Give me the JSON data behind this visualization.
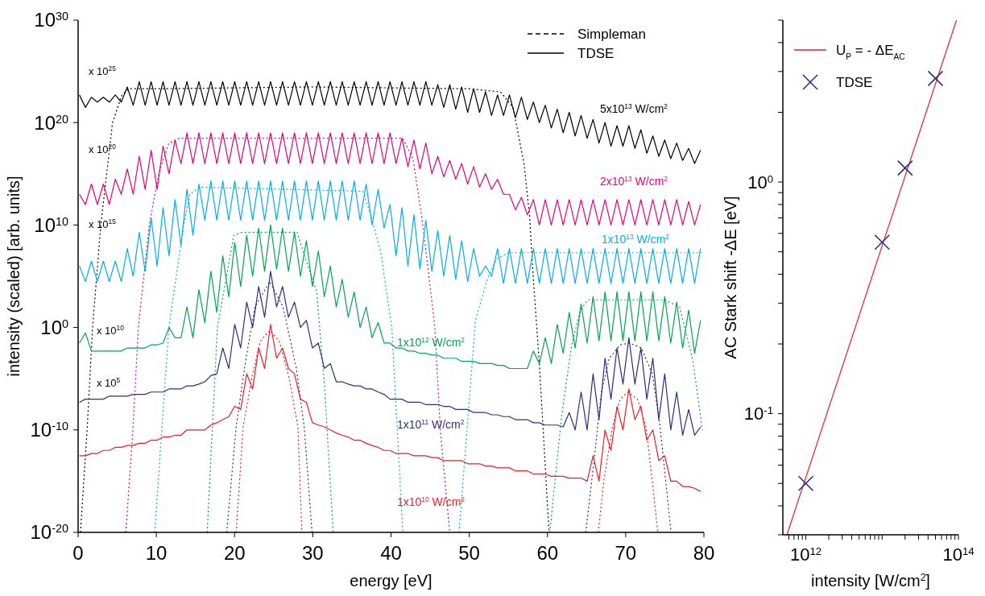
{
  "chart_data": [
    {
      "type": "line",
      "xlabel": "energy [eV]",
      "ylabel": "intensity (scaled) [arb. units]",
      "xlim": [
        0,
        80
      ],
      "ylim": [
        1e-20,
        1e+30
      ],
      "xticks": [
        0,
        10,
        20,
        30,
        40,
        50,
        60,
        70,
        80
      ],
      "yticks": [
        {
          "value": 1e-20,
          "label": "10$^{-20}$"
        },
        {
          "value": 1e-10,
          "label": "10$^{-10}$"
        },
        {
          "value": 1,
          "label": "10$^{0}$"
        },
        {
          "value": 10000000000.0,
          "label": "10$^{10}$"
        },
        {
          "value": 1e+20,
          "label": "10$^{20}$"
        },
        {
          "value": 1e+30,
          "label": "10$^{30}$"
        }
      ],
      "log": "y",
      "annotations": [
        "Simpleman",
        "TDSE",
        "x 10$^{25}$",
        "x 10$^{20}$",
        "x 10$^{15}$",
        "x 10$^{10}$",
        "x 10$^{5}$"
      ],
      "x": [
        0.17,
        0.93,
        1.7,
        2.46,
        3.22,
        3.99,
        4.75,
        5.52,
        6.28,
        7.04,
        7.81,
        8.57,
        9.33,
        10.1,
        10.86,
        11.62,
        12.39,
        13.15,
        13.91,
        14.68,
        15.44,
        16.2,
        16.97,
        17.73,
        18.49,
        19.26,
        20.02,
        20.78,
        21.55,
        22.31,
        23.08,
        23.84,
        24.6,
        25.37,
        26.13,
        26.89,
        27.66,
        28.42,
        29.18,
        29.95,
        30.71,
        31.47,
        32.24,
        33.0,
        33.76,
        34.53,
        35.29,
        36.05,
        36.82,
        37.58,
        38.35,
        39.11,
        39.87,
        40.64,
        41.4,
        42.16,
        42.93,
        43.69,
        44.45,
        45.22,
        45.98,
        46.74,
        47.51,
        48.27,
        49.03,
        49.8,
        50.56,
        51.32,
        52.09,
        52.85,
        53.62,
        54.38,
        55.14,
        55.91,
        56.67,
        57.43,
        58.2,
        58.96,
        59.72,
        60.49,
        61.25,
        62.01,
        62.78,
        63.54,
        64.3,
        65.07,
        65.83,
        66.59,
        67.36,
        68.12,
        68.89,
        69.65,
        70.41,
        71.18,
        71.94,
        72.7,
        73.47,
        74.23,
        74.99,
        75.76,
        76.52,
        77.28,
        78.05,
        78.81,
        79.57
      ],
      "series": [
        {
          "name": "5x10$^{13}$ W/cm$^{2}$",
          "color": "#000000",
          "line_style": "solid",
          "values": [
            5e+22,
            3e+21,
            3e+22,
            1e+22,
            3e+22,
            1e+22,
            5e+22,
            1e+22,
            3e+23,
            5e+21,
            1e+24,
            5e+21,
            1e+24,
            5e+21,
            1e+24,
            5e+21,
            1e+24,
            5e+21,
            1e+24,
            5e+21,
            1e+24,
            5e+21,
            1e+24,
            5e+21,
            1e+24,
            5e+21,
            1e+24,
            5e+21,
            1e+24,
            5e+21,
            1e+24,
            5e+21,
            1e+24,
            5e+21,
            1e+24,
            5e+21,
            1e+24,
            5e+21,
            1e+24,
            5e+21,
            1e+24,
            5e+21,
            1e+24,
            5e+21,
            1e+24,
            5e+21,
            1e+24,
            5e+21,
            1e+24,
            5e+21,
            1e+24,
            5e+21,
            1e+24,
            5e+21,
            1e+24,
            5e+21,
            1e+24,
            5e+21,
            1e+24,
            5e+21,
            5e+23,
            3e+21,
            5e+23,
            2e+21,
            3e+23,
            1e+21,
            2e+23,
            1e+21,
            1e+23,
            5e+20,
            5e+22,
            5e+20,
            5e+22,
            3e+20,
            3e+22,
            2e+20,
            1e+22,
            1e+20,
            5e+21,
            3e+19,
            2e+21,
            1e+19,
            1e+21,
            5e+18,
            5e+20,
            3e+18,
            2e+20,
            1e+18,
            1e+20,
            5e+17,
            5e+19,
            5e+17,
            5e+19,
            3e+17,
            2e+19,
            1e+17,
            5e+18,
            5e+16,
            2e+18,
            3e+16,
            1e+18,
            2e+16,
            3e+17,
            1e+16,
            2e+17
          ]
        },
        {
          "color": "#000000",
          "line_style": "dotted",
          "x": [
            0.3,
            1.15,
            1.85,
            2.9,
            4.4,
            5.6,
            6.5,
            10,
            30,
            50,
            54,
            55.6,
            57,
            57.7,
            58.2,
            59,
            60.2
          ],
          "values": [
            1e-20,
            1e-10,
            1,
            10000000000.0,
            1e+20,
            5e+22,
            2e+23,
            2e+23,
            3e+23,
            2e+23,
            1e+23,
            3e+21,
            1e+16,
            100000000000.0,
            50000.0,
            0.0001,
            1e-20
          ]
        },
        {
          "name": "2x10$^{13}$ W/cm$^{2}$",
          "color": "#e6007e",
          "line_style": "solid",
          "values": [
            10000000000000.0,
            1000000000000.0,
            100000000000000.0,
            1000000000000.0,
            100000000000000.0,
            1000000000000.0,
            300000000000000.0,
            10000000000000.0,
            3000000000000000.0,
            10000000000000.0,
            5e+16,
            30000000000000.0,
            2e+17,
            30000000000000.0,
            5e+17,
            1000000000000000.0,
            2e+18,
            1e+16,
            1e+19,
            1e+16,
            1e+19,
            1e+16,
            1e+19,
            1e+16,
            1e+19,
            1e+16,
            1e+19,
            1e+16,
            1e+19,
            1e+16,
            1e+19,
            1e+16,
            1e+19,
            1e+16,
            1e+19,
            1e+16,
            1e+19,
            1e+16,
            1e+19,
            1e+16,
            1e+19,
            1e+16,
            1e+19,
            1e+16,
            1e+19,
            1e+16,
            1e+19,
            1e+16,
            1e+19,
            1e+16,
            1e+19,
            1e+16,
            1e+19,
            1e+16,
            3e+18,
            5000000000000000.0,
            2e+18,
            3000000000000000.0,
            1e+18,
            1000000000000000.0,
            5e+16,
            500000000000000.0,
            2e+16,
            300000000000000.0,
            1e+16,
            100000000000000.0,
            5000000000000000.0,
            50000000000000.0,
            1000000000000000.0,
            30000000000000.0,
            300000000000000.0,
            10000000000000.0,
            10000000000000.0,
            300000000000.0,
            5000000000000.0,
            100000000000.0,
            3000000000000.0,
            10000000000.0,
            3000000000000.0,
            10000000000.0,
            3000000000000.0,
            10000000000.0,
            3000000000000.0,
            10000000000.0,
            3000000000000.0,
            10000000000.0,
            3000000000000.0,
            10000000000.0,
            3000000000000.0,
            10000000000.0,
            3000000000000.0,
            10000000000.0,
            3000000000000.0,
            10000000000.0,
            3000000000000.0,
            10000000000.0,
            3000000000000.0,
            10000000000.0,
            3000000000000.0,
            10000000000.0,
            3000000000000.0,
            10000000000.0,
            2000000000000.0,
            10000000000.0,
            1000000000000.0
          ]
        },
        {
          "color": "#e6007e",
          "line_style": "dotted",
          "x": [
            6.1,
            7.0,
            7.7,
            9.1,
            10.3,
            11.6,
            13,
            30,
            41.5,
            42.8,
            43.9,
            44.7,
            45.6,
            46.3,
            47.5
          ],
          "values": [
            1e-20,
            1e-10,
            1,
            10000000000.0,
            1000000000000000.0,
            1e+18,
            3e+18,
            3e+18,
            3e+18,
            3e+16,
            100000000000.0,
            1000000.0,
            1,
            1e-10,
            1e-20
          ]
        },
        {
          "name": "1x10$^{13}$ W/cm$^{2}$",
          "color": "#00aeef",
          "line_style": "solid",
          "values": [
            1000000.0,
            30000.0,
            3000000.0,
            30000.0,
            3000000.0,
            30000.0,
            3000000.0,
            30000.0,
            50000000.0,
            100000.0,
            2000000000.0,
            300000.0,
            50000000000.0,
            1000000.0,
            500000000000.0,
            10000000.0,
            3000000000000.0,
            100000000.0,
            30000000000000.0,
            1000000000.0,
            100000000000000.0,
            30000000000.0,
            200000000000000.0,
            30000000000.0,
            200000000000000.0,
            30000000000.0,
            200000000000000.0,
            30000000000.0,
            200000000000000.0,
            30000000000.0,
            200000000000000.0,
            30000000000.0,
            200000000000000.0,
            30000000000.0,
            200000000000000.0,
            30000000000.0,
            200000000000000.0,
            30000000000.0,
            200000000000000.0,
            30000000000.0,
            200000000000000.0,
            30000000000.0,
            200000000000000.0,
            30000000000.0,
            200000000000000.0,
            30000000000.0,
            200000000000000.0,
            30000000000.0,
            100000000000000.0,
            10000000000.0,
            30000000000000.0,
            5000000000.0,
            1000000000000.0,
            10000000.0,
            500000000000.0,
            1000000.0,
            100000000000.0,
            500000.0,
            30000000000.0,
            300000.0,
            3000000000.0,
            100000.0,
            1000000000.0,
            50000.0,
            300000000.0,
            30000.0,
            50000000.0,
            100000.0,
            1000000.0,
            100000.0,
            50000000.0,
            20000.0,
            50000000.0,
            20000.0,
            50000000.0,
            20000.0,
            50000000.0,
            20000.0,
            50000000.0,
            20000.0,
            50000000.0,
            20000.0,
            50000000.0,
            20000.0,
            50000000.0,
            20000.0,
            50000000.0,
            20000.0,
            50000000.0,
            20000.0,
            50000000.0,
            20000.0,
            50000000.0,
            20000.0,
            50000000.0,
            20000.0,
            50000000.0,
            20000.0,
            50000000.0,
            20000.0,
            50000000.0,
            20000.0,
            50000000.0,
            20000.0,
            50000000.0
          ]
        },
        {
          "color": "#00aeef",
          "line_style": "dotted",
          "x": [
            9.8,
            11.6,
            13.5,
            14.3,
            15.5,
            36.4,
            37.4,
            38.7,
            40.1,
            41.5,
            45,
            48.7,
            50.8,
            52.3,
            53.5,
            55,
            80
          ],
          "values": [
            1e-20,
            1,
            10000000000.0,
            10000000000000.0,
            50000000000000.0,
            20000000000000.0,
            100000000000.0,
            20000000.0,
            1,
            1e-20,
            null,
            1e-20,
            5,
            50000.0,
            5000000.0,
            20000000.0,
            20000000.0
          ]
        },
        {
          "name": "1x10$^{12}$ W/cm$^{2}$",
          "color": "#00a651",
          "line_style": "solid",
          "values": [
            0.03,
            0.3,
            0.005,
            0.005,
            0.005,
            0.005,
            0.005,
            0.005,
            0.01,
            0.01,
            0.01,
            0.01,
            0.02,
            0.02,
            0.03,
            1,
            0.1,
            0.1,
            100.0,
            0.1,
            5000.0,
            3,
            300000.0,
            30.0,
            10000000.0,
            1000.0,
            200000000.0,
            10000.0,
            1000000000.0,
            100000.0,
            5000000000.0,
            300000.0,
            10000000000.0,
            500000.0,
            5000000000.0,
            300000.0,
            2000000000.0,
            100000.0,
            300000000.0,
            10000.0,
            30000000.0,
            1000.0,
            1000000.0,
            100.0,
            50000.0,
            10.0,
            3000.0,
            1,
            100.0,
            0.1,
            3,
            0.03,
            0.03,
            0.01,
            0.01,
            0.005,
            0.005,
            0.003,
            0.003,
            0.002,
            0.002,
            0.001,
            0.001,
            0.001,
            0.0005,
            0.0005,
            0.0005,
            0.0003,
            0.0003,
            0.0003,
            0.0002,
            0.0002,
            0.0001,
            0.0001,
            0.0001,
            0.0001,
            0.005,
            0.0003,
            0.1,
            0.0003,
            2,
            0.003,
            30.0,
            0.01,
            200.0,
            0.03,
            1000.0,
            0.05,
            3000.0,
            0.05,
            3000.0,
            0.05,
            3000.0,
            0.05,
            3000.0,
            0.05,
            3000.0,
            0.05,
            1000.0,
            0.03,
            300.0,
            0.01,
            50.0,
            0.003,
            5
          ]
        },
        {
          "color": "#00a651",
          "line_style": "dotted",
          "x": [
            16.5,
            17.8,
            19.9,
            21,
            28,
            28.8,
            30.5,
            31.5,
            32.6,
            45,
            60.3,
            61.8,
            63.1,
            64.2,
            65.2,
            66,
            75,
            76.9,
            78.6,
            79.8
          ],
          "values": [
            1e-20,
            1,
            1000000000.0,
            2000000000.0,
            2000000000.0,
            20000000.0,
            3000.0,
            2e-06,
            1e-20,
            null,
            1e-20,
            2e-09,
            0.02,
            50.0,
            500.0,
            500.0,
            500.0,
            100.0,
            0.0005,
            1e-10
          ]
        },
        {
          "name": "1x10$^{11}$ W/cm$^{2}$",
          "color": "#2b2e83",
          "line_style": "solid",
          "values": [
            5e-08,
            1e-07,
            1e-07,
            1e-07,
            1e-07,
            2e-07,
            2e-07,
            2e-07,
            2e-07,
            3e-07,
            3e-07,
            3e-07,
            5e-07,
            5e-07,
            5e-07,
            1e-06,
            1e-06,
            1e-06,
            2e-06,
            2e-06,
            3e-06,
            5e-06,
            2e-05,
            3e-05,
            0.01,
            0.0001,
            2,
            0.01,
            300.0,
            1,
            10000.0,
            10.0,
            300000.0,
            100.0,
            10000.0,
            10.0,
            300.0,
            1,
            5,
            0.01,
            0.03,
            0.0001,
            0.0003,
            5e-06,
            5e-06,
            3e-06,
            2e-06,
            2e-06,
            1e-06,
            1e-06,
            5e-07,
            3e-07,
            1e-07,
            1e-07,
            1e-07,
            5e-08,
            5e-08,
            5e-08,
            3e-08,
            3e-08,
            3e-08,
            2e-08,
            2e-08,
            1e-08,
            1e-08,
            1e-08,
            5e-09,
            5e-09,
            5e-09,
            3e-09,
            3e-09,
            2e-09,
            2e-09,
            1e-09,
            1e-09,
            1e-09,
            5e-10,
            5e-10,
            3e-10,
            3e-10,
            3e-10,
            2e-10,
            5e-09,
            1e-10,
            5e-07,
            1e-10,
            3e-05,
            1e-09,
            0.001,
            1e-07,
            0.01,
            3e-06,
            0.1,
            3e-06,
            0.01,
            1e-07,
            0.001,
            1e-09,
            3e-05,
            1e-10,
            5e-07,
            3e-11,
            1e-08,
            3e-11,
            2e-10
          ]
        },
        {
          "color": "#2b2e83",
          "line_style": "dotted",
          "x": [
            19.0,
            20.2,
            21.4,
            22.6,
            24.5,
            26.2,
            27.9,
            28.9,
            29.9,
            45,
            64.9,
            66.1,
            66.9,
            67.9,
            69.3,
            70.5,
            72.0,
            73.4,
            74.4,
            75.8
          ],
          "values": [
            1e-20,
            2e-10,
            0.0005,
            100.0,
            30000.0,
            100.0,
            0.0001,
            2e-10,
            1e-20,
            null,
            1e-20,
            1e-12,
            5e-07,
            0.001,
            0.02,
            0.03,
            0.01,
            3e-05,
            2e-10,
            1e-20
          ]
        },
        {
          "name": "1x10$^{10}$ W/cm$^{2}$",
          "color": "#ed1c24",
          "line_style": "solid",
          "values": [
            3e-13,
            3e-13,
            5e-13,
            5e-13,
            1e-12,
            1e-12,
            2e-12,
            2e-12,
            3e-12,
            3e-12,
            5e-12,
            5e-12,
            1e-11,
            1e-11,
            2e-11,
            2e-11,
            3e-11,
            3e-11,
            1e-10,
            1e-10,
            1e-10,
            1e-10,
            3e-10,
            5e-10,
            1e-09,
            2e-09,
            2e-08,
            1e-08,
            3e-05,
            1e-06,
            0.01,
            0.0001,
            2,
            0.001,
            0.01,
            0.0001,
            3e-05,
            1e-07,
            5e-08,
            5e-10,
            3e-10,
            2e-10,
            1e-10,
            5e-11,
            3e-11,
            2e-11,
            1e-11,
            1e-11,
            5e-12,
            3e-12,
            2e-12,
            1e-12,
            1e-12,
            5e-13,
            5e-13,
            5e-13,
            3e-13,
            3e-13,
            3e-13,
            2e-13,
            2e-13,
            1e-13,
            1e-13,
            1e-13,
            1e-13,
            5e-14,
            5e-14,
            5e-14,
            3e-14,
            3e-14,
            2e-14,
            2e-14,
            2e-14,
            1e-14,
            1e-14,
            1e-14,
            5e-15,
            5e-15,
            5e-15,
            3e-15,
            3e-15,
            3e-15,
            2e-15,
            2e-15,
            2e-15,
            1e-15,
            3e-13,
            1e-15,
            1e-10,
            1e-12,
            2e-08,
            1e-10,
            1e-06,
            1e-09,
            2e-08,
            1e-11,
            1e-10,
            1e-13,
            3e-13,
            1e-15,
            1e-15,
            3e-16,
            3e-16,
            2e-16,
            1e-16
          ]
        },
        {
          "color": "#ed1c24",
          "line_style": "dotted",
          "x": [
            20.2,
            21.1,
            22.3,
            23.3,
            24.5,
            25.7,
            27.0,
            28.1,
            28.6,
            45,
            66.5,
            67.2,
            68.3,
            69.3,
            70.3,
            71.5,
            72.6,
            73.4,
            74.1
          ],
          "values": [
            1e-20,
            2e-10,
            3e-05,
            0.05,
            0.5,
            0.05,
            1e-05,
            2e-10,
            1e-20,
            null,
            1e-20,
            1e-15,
            2e-10,
            1e-07,
            5e-07,
            1e-07,
            2e-10,
            1e-15,
            1e-20
          ]
        }
      ]
    },
    {
      "type": "line",
      "xlabel": "intensity [W/cm$^{2}$]",
      "ylabel": "AC Stark shift -ΔE [eV]",
      "xlim": [
        500000000000.0,
        100000000000000.0
      ],
      "ylim": [
        0.03,
        5
      ],
      "xticks": [
        {
          "value": 600000000000.0,
          "label": null
        },
        {
          "value": 700000000000.0,
          "label": null
        },
        {
          "value": 800000000000.0,
          "label": null
        },
        {
          "value": 900000000000.0,
          "label": null
        },
        {
          "value": 1000000000000.0,
          "label": "10$^{12}$"
        },
        {
          "value": 2000000000000.0,
          "label": null
        },
        {
          "value": 3000000000000.0,
          "label": null
        },
        {
          "value": 4000000000000.0,
          "label": null
        },
        {
          "value": 5000000000000.0,
          "label": null
        },
        {
          "value": 6000000000000.0,
          "label": null
        },
        {
          "value": 7000000000000.0,
          "label": null
        },
        {
          "value": 8000000000000.0,
          "label": null
        },
        {
          "value": 9000000000000.0,
          "label": null
        },
        {
          "value": 10000000000000.0,
          "label": null
        },
        {
          "value": 20000000000000.0,
          "label": null
        },
        {
          "value": 30000000000000.0,
          "label": null
        },
        {
          "value": 40000000000000.0,
          "label": null
        },
        {
          "value": 50000000000000.0,
          "label": null
        },
        {
          "value": 60000000000000.0,
          "label": null
        },
        {
          "value": 70000000000000.0,
          "label": null
        },
        {
          "value": 80000000000000.0,
          "label": null
        },
        {
          "value": 90000000000000.0,
          "label": null
        },
        {
          "value": 100000000000000.0,
          "label": "10$^{14}$"
        }
      ],
      "yticks": [
        {
          "value": 0.03,
          "label": null
        },
        {
          "value": 0.04,
          "label": null
        },
        {
          "value": 0.05,
          "label": null
        },
        {
          "value": 0.06,
          "label": null
        },
        {
          "value": 0.07,
          "label": null
        },
        {
          "value": 0.08,
          "label": null
        },
        {
          "value": 0.09,
          "label": null
        },
        {
          "value": 0.1,
          "label": "10$^{-1}$"
        },
        {
          "value": 0.2,
          "label": null
        },
        {
          "value": 0.3,
          "label": null
        },
        {
          "value": 0.4,
          "label": null
        },
        {
          "value": 0.5,
          "label": null
        },
        {
          "value": 0.6,
          "label": null
        },
        {
          "value": 0.7,
          "label": null
        },
        {
          "value": 0.8,
          "label": null
        },
        {
          "value": 0.9,
          "label": null
        },
        {
          "value": 1,
          "label": "10$^{0}$"
        },
        {
          "value": 2,
          "label": null
        },
        {
          "value": 3,
          "label": null
        },
        {
          "value": 4,
          "label": null
        },
        {
          "value": 5,
          "label": null
        }
      ],
      "log": "xy",
      "legend": "top left",
      "series": [
        {
          "name": "U$_{P}$ = - ΔE$_{AC}$",
          "color": "#ed1c24",
          "line_style": "solid",
          "x": [
            566000000000.0,
            94300000000000.0
          ],
          "values": [
            0.03,
            5
          ]
        },
        {
          "name": "TDSE",
          "type": "scatter",
          "color": "#2b2e83",
          "marker": "cross",
          "x": [
            1000000000000.0,
            10000000000000.0,
            20000000000000.0,
            50000000000000.0
          ],
          "values": [
            0.05,
            0.55,
            1.15,
            2.8
          ]
        }
      ]
    }
  ]
}
